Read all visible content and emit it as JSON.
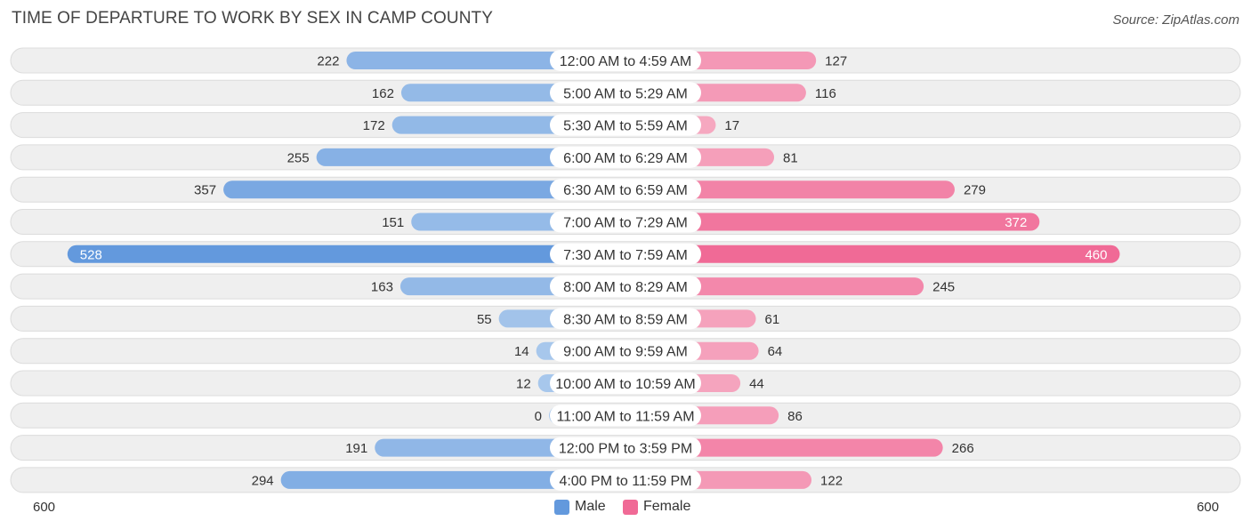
{
  "title": "TIME OF DEPARTURE TO WORK BY SEX IN CAMP COUNTY",
  "source": "Source: ZipAtlas.com",
  "colors": {
    "male_light": "#a9c8ec",
    "male_dark": "#6399dd",
    "female_light": "#f6aac2",
    "female_dark": "#f06a96",
    "row_bg": "#efefef",
    "row_border": "#dcdcdc"
  },
  "chart_data": {
    "type": "bar",
    "orientation": "horizontal-diverging",
    "title": "TIME OF DEPARTURE TO WORK BY SEX IN CAMP COUNTY",
    "categories": [
      "12:00 AM to 4:59 AM",
      "5:00 AM to 5:29 AM",
      "5:30 AM to 5:59 AM",
      "6:00 AM to 6:29 AM",
      "6:30 AM to 6:59 AM",
      "7:00 AM to 7:29 AM",
      "7:30 AM to 7:59 AM",
      "8:00 AM to 8:29 AM",
      "8:30 AM to 8:59 AM",
      "9:00 AM to 9:59 AM",
      "10:00 AM to 10:59 AM",
      "11:00 AM to 11:59 AM",
      "12:00 PM to 3:59 PM",
      "4:00 PM to 11:59 PM"
    ],
    "series": [
      {
        "name": "Male",
        "values": [
          222,
          162,
          172,
          255,
          357,
          151,
          528,
          163,
          55,
          14,
          12,
          0,
          191,
          294
        ]
      },
      {
        "name": "Female",
        "values": [
          127,
          116,
          17,
          81,
          279,
          372,
          460,
          245,
          61,
          64,
          44,
          86,
          266,
          122
        ]
      }
    ],
    "axis_min_label": "600",
    "axis_max_label": "600",
    "xlim": [
      -600,
      600
    ],
    "legend": [
      "Male",
      "Female"
    ],
    "legend_position": "bottom-center"
  }
}
